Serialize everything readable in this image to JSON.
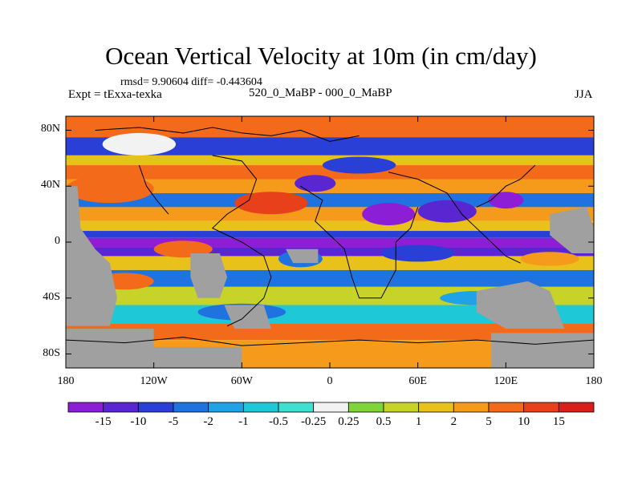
{
  "title": "Ocean Vertical Velocity at 10m (in cm/day)",
  "rmsd_text": "rmsd= 9.90604  diff= -0.443604",
  "experiment_text": "Expt = tExxa-texka",
  "difference_label": "520_0_MaBP - 000_0_MaBP",
  "season": "JJA",
  "lat_ticks": [
    "80N",
    "40N",
    "0",
    "40S",
    "80S"
  ],
  "lat_values": [
    80,
    40,
    0,
    -40,
    -80
  ],
  "lon_ticks": [
    "180",
    "120W",
    "60W",
    "0",
    "60E",
    "120E",
    "180"
  ],
  "lon_values": [
    -180,
    -120,
    -60,
    0,
    60,
    120,
    180
  ],
  "colorbar": {
    "labels": [
      "-15",
      "-10",
      "-5",
      "-2",
      "-1",
      "-0.5",
      "-0.25",
      "0.25",
      "0.5",
      "1",
      "2",
      "5",
      "10",
      "15"
    ],
    "colors": [
      "#8c1fd6",
      "#5a26d1",
      "#2a3fd6",
      "#1f73e0",
      "#1fa2e6",
      "#1fc8d6",
      "#3fe0d0",
      "#f2f2f2",
      "#7fd43a",
      "#c8d32a",
      "#e8c21a",
      "#f59a1a",
      "#f26a1a",
      "#e8401a",
      "#d81f1a"
    ]
  },
  "land_color": "#a0a0a0",
  "map": {
    "lon_range": [
      -180,
      180
    ],
    "lat_range": [
      -90,
      90
    ]
  }
}
